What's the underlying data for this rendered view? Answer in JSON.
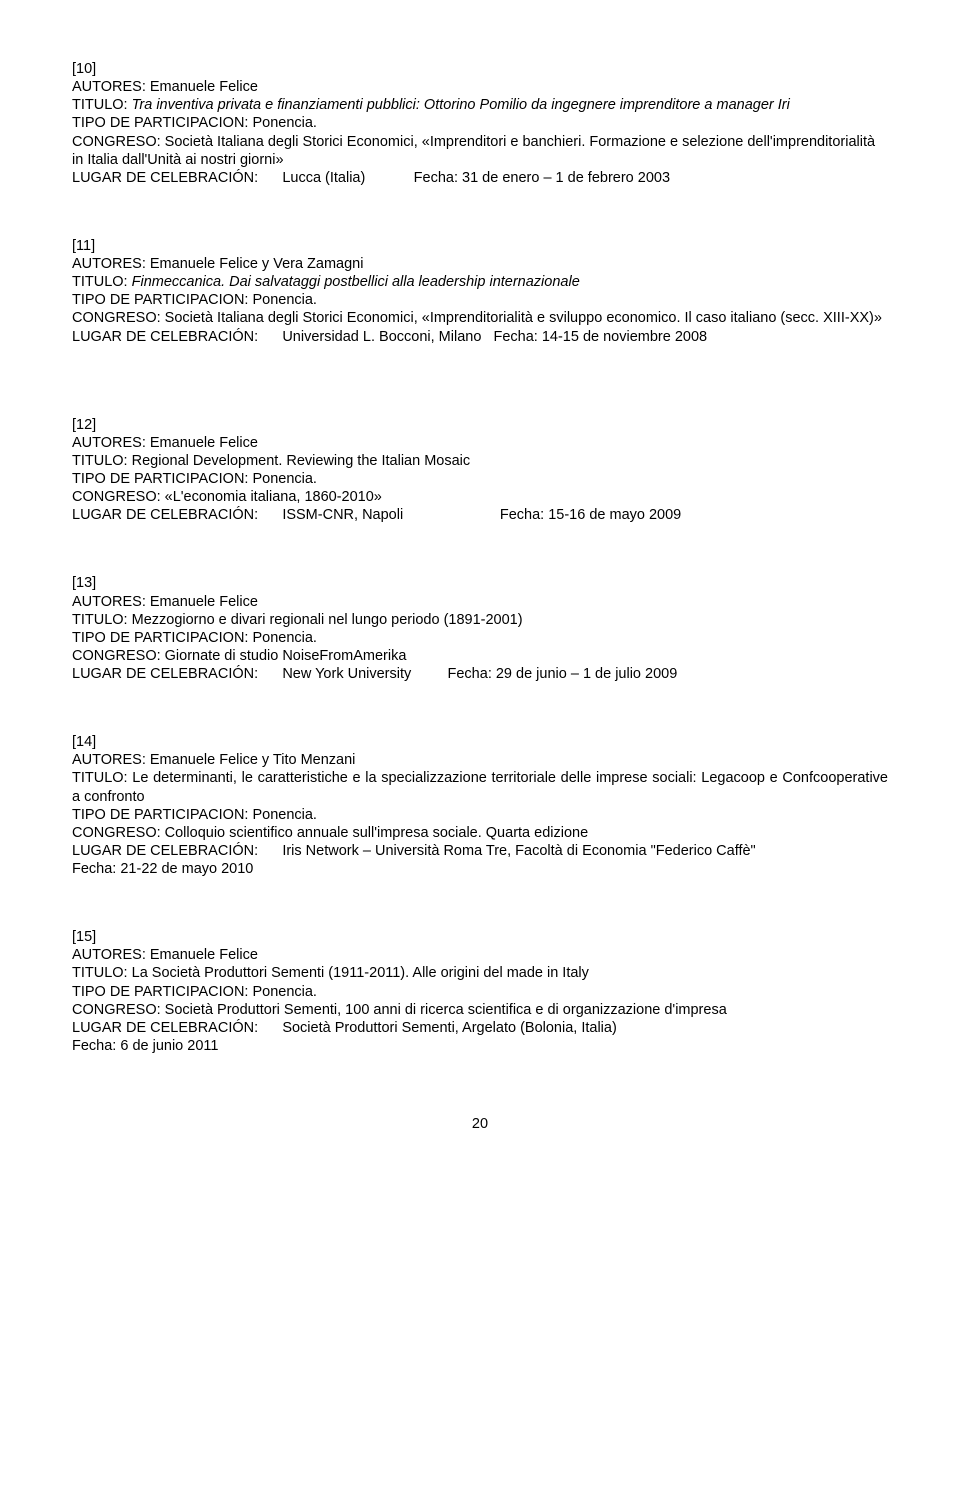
{
  "entries": [
    {
      "num": "[10]",
      "authors": "AUTORES: Emanuele Felice",
      "title_prefix": "TITULO: ",
      "title_italic": "Tra inventiva privata e finanziamenti pubblici: Ottorino Pomilio da ingegnere imprenditore a manager Iri",
      "tipo": "TIPO DE PARTICIPACION: Ponencia.",
      "congreso": "CONGRESO: Società Italiana degli Storici Economici, «Imprenditori e banchieri. Formazione e selezione dell'imprenditorialità in Italia dall'Unità ai nostri giorni»",
      "lugar_label": "LUGAR DE CELEBRACIÓN:",
      "lugar_place": "Lucca (Italia)",
      "lugar_fecha": "Fecha: 31 de enero – 1 de febrero 2003"
    },
    {
      "num": "[11]",
      "authors": "AUTORES: Emanuele Felice y Vera Zamagni",
      "title_prefix": "TITULO: ",
      "title_italic": "Finmeccanica. Dai salvataggi postbellici alla leadership internazionale",
      "tipo": "TIPO DE PARTICIPACION: Ponencia.",
      "congreso": "CONGRESO: Società Italiana degli Storici Economici, «Imprenditorialità e sviluppo economico. Il caso italiano (secc. XIII-XX)»",
      "lugar_label": "LUGAR DE CELEBRACIÓN:",
      "lugar_place": "Universidad L. Bocconi, Milano",
      "lugar_fecha": "Fecha: 14-15 de noviembre 2008"
    },
    {
      "num": "[12]",
      "authors": "AUTORES: Emanuele Felice",
      "title_prefix": "TITULO: ",
      "title_plain": "Regional Development. Reviewing the Italian Mosaic",
      "tipo": "TIPO DE PARTICIPACION: Ponencia.",
      "congreso": "CONGRESO: «L'economia italiana, 1860-2010»",
      "lugar_label": "LUGAR DE CELEBRACIÓN:",
      "lugar_place": "ISSM-CNR, Napoli",
      "lugar_fecha": "Fecha: 15-16 de mayo 2009"
    },
    {
      "num": "[13]",
      "authors": "AUTORES: Emanuele Felice",
      "title_prefix": "TITULO: ",
      "title_plain": "Mezzogiorno e divari regionali nel lungo periodo (1891-2001)",
      "tipo": "TIPO DE PARTICIPACION: Ponencia.",
      "congreso": "CONGRESO: Giornate di studio NoiseFromAmerika",
      "lugar_label": "LUGAR DE CELEBRACIÓN:",
      "lugar_place": "New York University",
      "lugar_fecha": "Fecha: 29 de junio – 1 de julio 2009"
    },
    {
      "num": "[14]",
      "authors": "AUTORES: Emanuele Felice y Tito Menzani",
      "title_prefix": "TITULO: ",
      "title_justify": "Le determinanti, le caratteristiche e la specializzazione territoriale delle imprese sociali: Legacoop e Confcooperative a confronto",
      "tipo": "TIPO DE PARTICIPACION: Ponencia.",
      "congreso": "CONGRESO: Colloquio scientifico annuale sull'impresa sociale. Quarta edizione",
      "lugar_label": "LUGAR DE CELEBRACIÓN:",
      "lugar_place_long": "Iris Network – Università Roma Tre, Facoltà di Economia \"Federico Caffè\"",
      "lugar_fecha_line": "Fecha: 21-22 de mayo 2010"
    },
    {
      "num": "[15]",
      "authors": "AUTORES: Emanuele Felice",
      "title_prefix": "TITULO: ",
      "title_plain": "La Società Produttori Sementi (1911-2011). Alle origini del made in Italy",
      "tipo": "TIPO DE PARTICIPACION: Ponencia.",
      "congreso": "CONGRESO: Società Produttori Sementi, 100 anni di ricerca scientifica e di organizzazione d'impresa",
      "lugar_label": "LUGAR DE CELEBRACIÓN:",
      "lugar_place_long": "Società Produttori Sementi, Argelato (Bolonia, Italia)",
      "lugar_fecha_line": "Fecha: 6 de junio 2011"
    }
  ],
  "page_number": "20"
}
